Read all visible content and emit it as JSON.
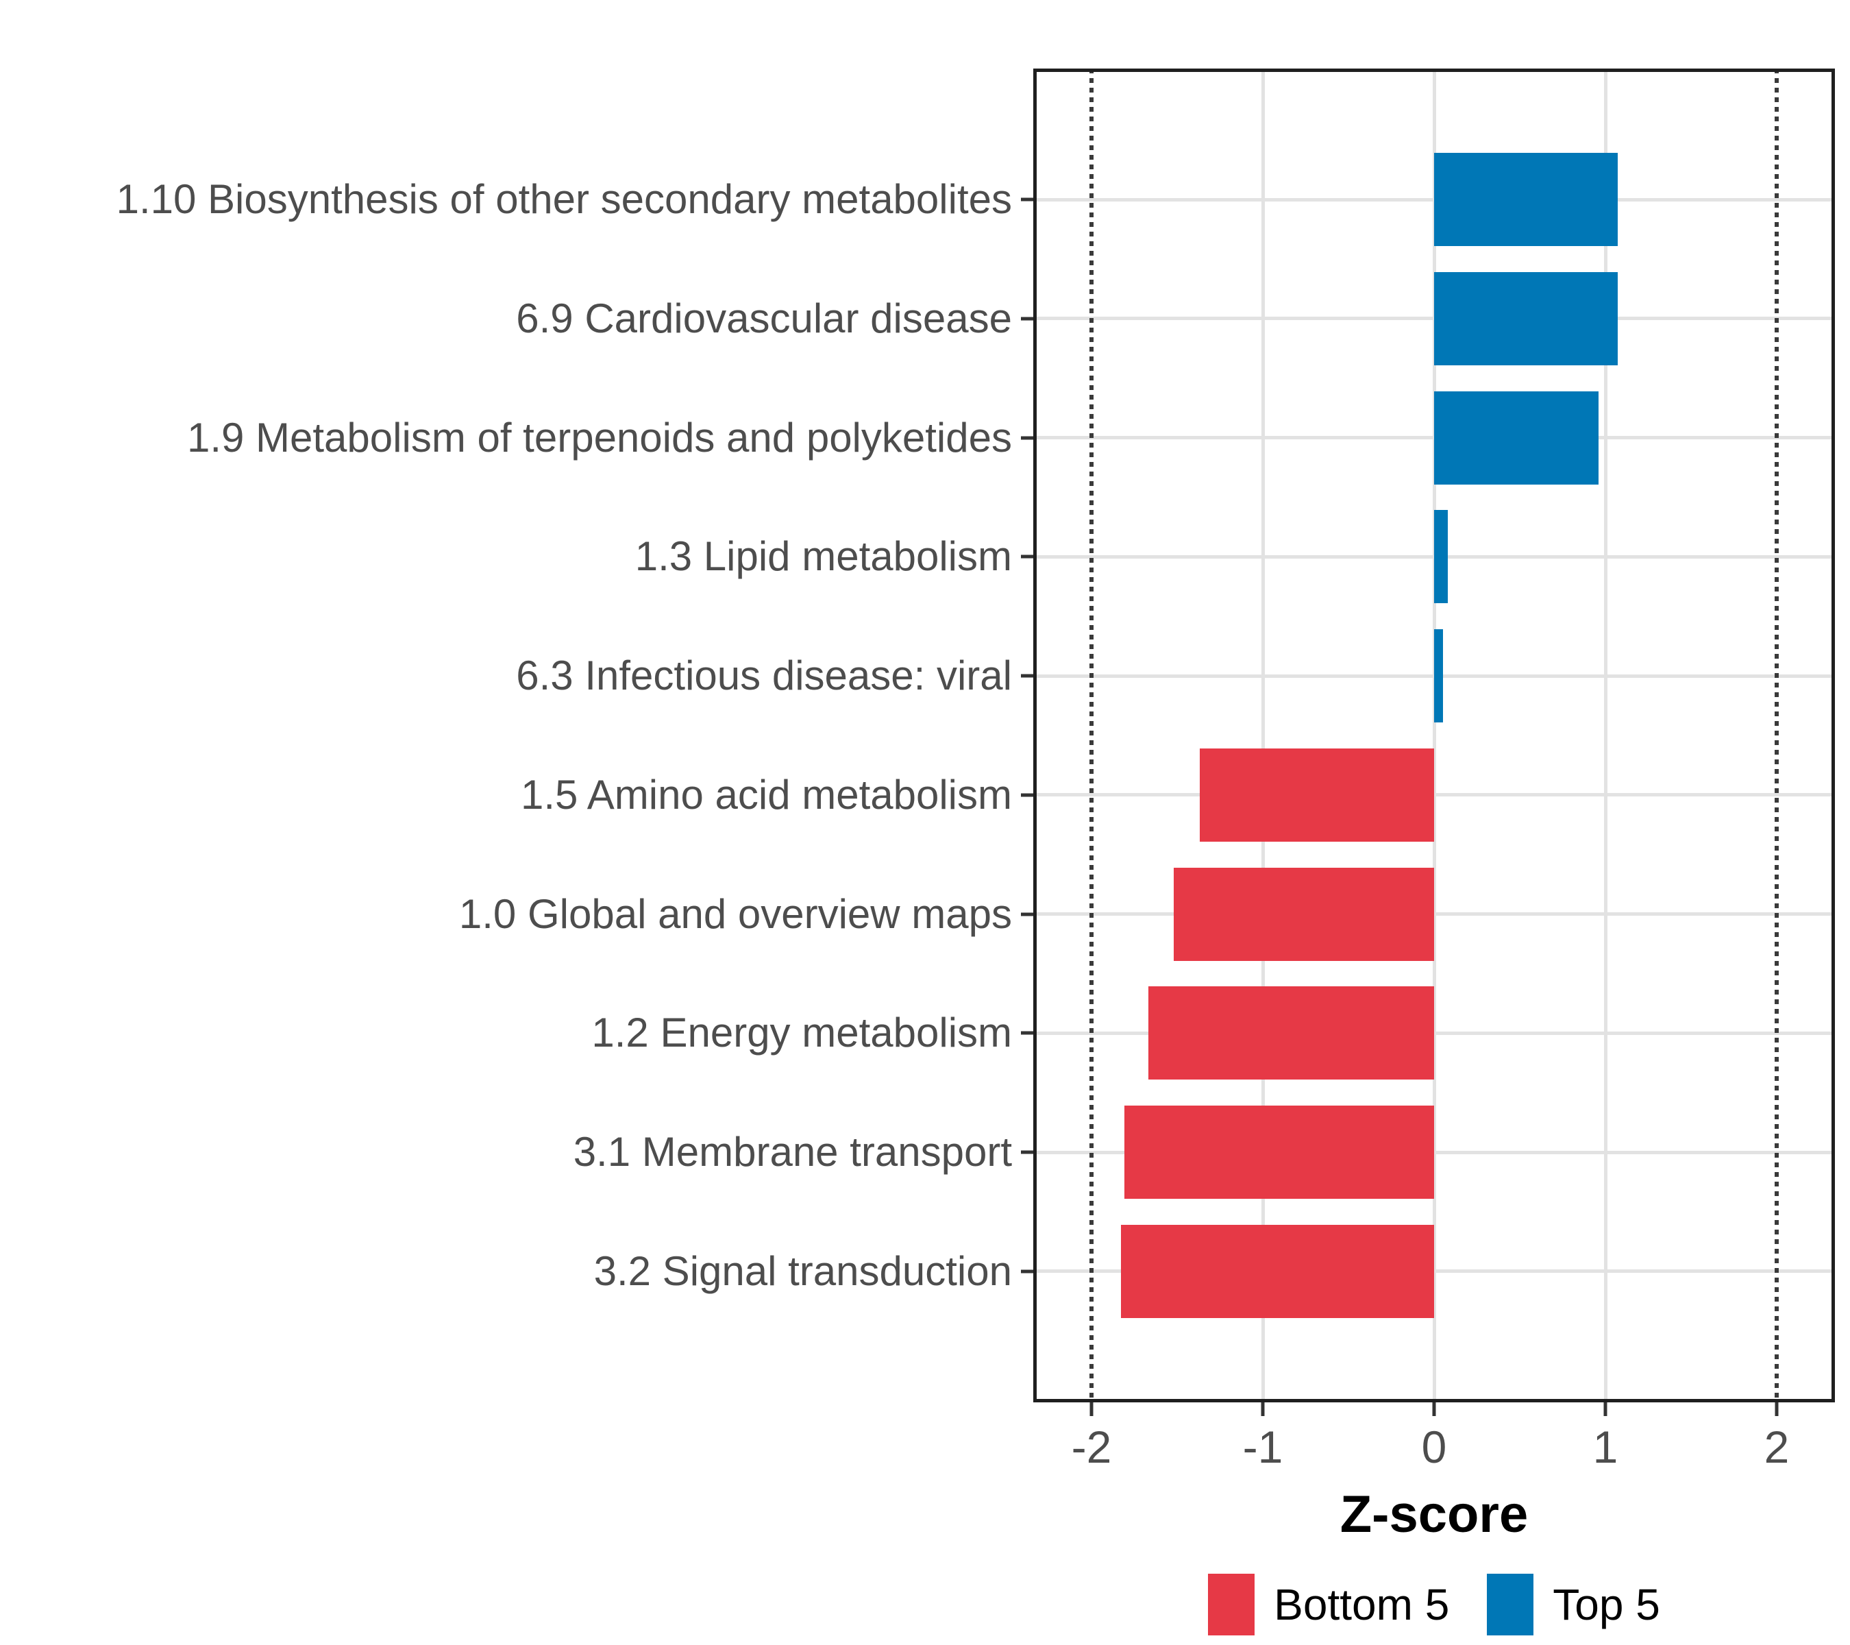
{
  "chart_data": {
    "type": "bar",
    "orientation": "horizontal",
    "title": "",
    "xlabel": "Z-score",
    "ylabel": "",
    "categories": [
      "1.10 Biosynthesis of other secondary metabolites",
      "6.9 Cardiovascular disease",
      "1.9 Metabolism of terpenoids and polyketides",
      "1.3 Lipid metabolism",
      "6.3 Infectious disease: viral",
      "1.5 Amino acid metabolism",
      "1.0 Global and overview maps",
      "1.2 Energy metabolism",
      "3.1 Membrane transport",
      "3.2 Signal transduction"
    ],
    "values": [
      1.07,
      1.07,
      0.96,
      0.08,
      0.05,
      -1.37,
      -1.52,
      -1.67,
      -1.81,
      -1.83
    ],
    "groups": [
      "Top 5",
      "Top 5",
      "Top 5",
      "Top 5",
      "Top 5",
      "Bottom 5",
      "Bottom 5",
      "Bottom 5",
      "Bottom 5",
      "Bottom 5"
    ],
    "group_colors": {
      "Top 5": "#0077B6",
      "Bottom 5": "#E63946"
    },
    "x_ticks": [
      -2,
      -1,
      0,
      1,
      2
    ],
    "x_tick_labels": [
      "-2",
      "-1",
      "0",
      "1",
      "2"
    ],
    "xlim": [
      -2.34,
      2.34
    ],
    "grid_x_ticks": [
      -1,
      0,
      1
    ],
    "reference_lines": [
      -2,
      2
    ],
    "grid": true,
    "legend_position": "bottom",
    "legend": [
      {
        "label": "Bottom 5",
        "color": "#E63946"
      },
      {
        "label": "Top 5",
        "color": "#0077B6"
      }
    ],
    "style_colors": {
      "gridline": "#e2e2e2",
      "panel_border": "#1f1f1f",
      "axis_text": "#4d4d4d",
      "reference_line": "#3a3a3a"
    }
  }
}
